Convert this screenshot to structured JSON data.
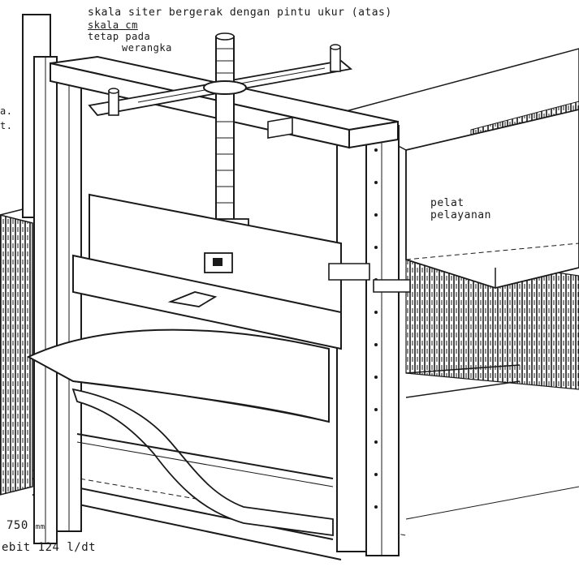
{
  "labels": {
    "top_scale": "skala siter bergerak dengan pintu ukur (atas)",
    "fixed_scale_line1": "skala cm",
    "fixed_scale_line2": "tetap pada",
    "fixed_scale_line3": "werangka",
    "plate_line1": "pelat",
    "plate_line2": "pelayanan",
    "width_value": "750",
    "width_unit": "mm",
    "discharge": "ebit  124 l/dt",
    "left_edge_marks": "a.\nt."
  },
  "colors": {
    "ink": "#1a1a1a",
    "paper": "#ffffff",
    "hatch": "#2a2a2a"
  }
}
